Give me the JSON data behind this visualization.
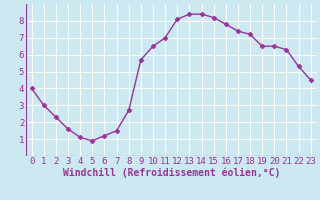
{
  "x": [
    0,
    1,
    2,
    3,
    4,
    5,
    6,
    7,
    8,
    9,
    10,
    11,
    12,
    13,
    14,
    15,
    16,
    17,
    18,
    19,
    20,
    21,
    22,
    23
  ],
  "y": [
    4.0,
    3.0,
    2.3,
    1.6,
    1.1,
    0.9,
    1.2,
    1.5,
    2.7,
    5.7,
    6.5,
    7.0,
    8.1,
    8.4,
    8.4,
    8.2,
    7.8,
    7.4,
    7.2,
    6.5,
    6.5,
    6.3,
    5.3,
    4.5
  ],
  "line_color": "#993399",
  "marker": "D",
  "marker_size": 2.5,
  "xlabel": "Windchill (Refroidissement éolien,°C)",
  "xlim_min": -0.5,
  "xlim_max": 23.5,
  "ylim_min": 0,
  "ylim_max": 9,
  "xticks": [
    0,
    1,
    2,
    3,
    4,
    5,
    6,
    7,
    8,
    9,
    10,
    11,
    12,
    13,
    14,
    15,
    16,
    17,
    18,
    19,
    20,
    21,
    22,
    23
  ],
  "yticks": [
    1,
    2,
    3,
    4,
    5,
    6,
    7,
    8
  ],
  "bg_color": "#cce8f0",
  "grid_color": "#ffffff",
  "tick_label_color": "#993399",
  "xlabel_color": "#993399",
  "xlabel_fontsize": 7,
  "tick_fontsize": 6.5,
  "linewidth": 1.0
}
